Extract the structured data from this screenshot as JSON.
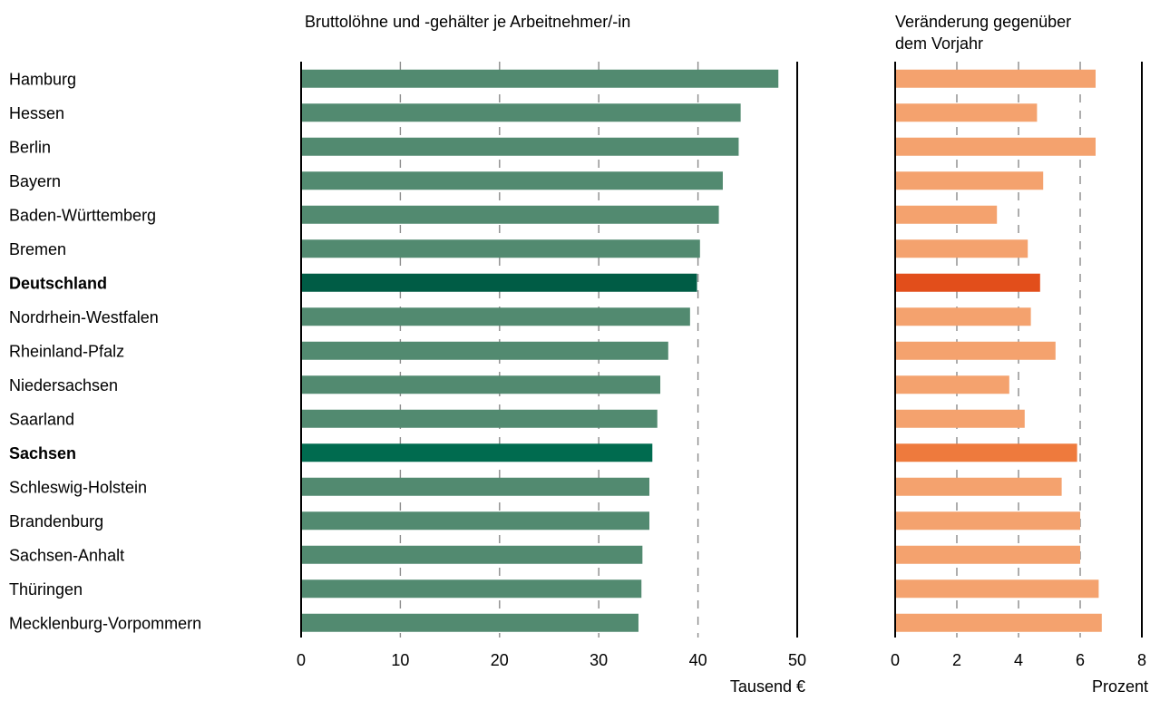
{
  "chart_data": [
    {
      "type": "bar",
      "orientation": "horizontal",
      "title": "Bruttolöhne und -gehälter je Arbeitnehmer/-in",
      "unit_label": "Tausend €",
      "xlim": [
        0,
        50
      ],
      "ticks": [
        0,
        10,
        20,
        30,
        40,
        50
      ],
      "grid": true,
      "colors": {
        "default": "#528a70",
        "Deutschland": "#005c45",
        "Sachsen": "#006b4f"
      },
      "categories": [
        "Hamburg",
        "Hessen",
        "Berlin",
        "Bayern",
        "Baden-Württemberg",
        "Bremen",
        "Deutschland",
        "Nordrhein-Westfalen",
        "Rheinland-Pfalz",
        "Niedersachsen",
        "Saarland",
        "Sachsen",
        "Schleswig-Holstein",
        "Brandenburg",
        "Sachsen-Anhalt",
        "Thüringen",
        "Mecklenburg-Vorpommern"
      ],
      "bold_categories": [
        "Deutschland",
        "Sachsen"
      ],
      "values": [
        48.1,
        44.3,
        44.1,
        42.5,
        42.1,
        40.2,
        39.9,
        39.2,
        37.0,
        36.2,
        35.9,
        35.4,
        35.1,
        35.1,
        34.4,
        34.3,
        34.0
      ]
    },
    {
      "type": "bar",
      "orientation": "horizontal",
      "title": "Veränderung gegenüber dem Vorjahr",
      "unit_label": "Prozent",
      "xlim": [
        0,
        8
      ],
      "ticks": [
        0,
        2,
        4,
        6,
        8
      ],
      "grid": true,
      "colors": {
        "default": "#f4a26e",
        "Deutschland": "#e24e1b",
        "Sachsen": "#ee7a3d"
      },
      "categories": [
        "Hamburg",
        "Hessen",
        "Berlin",
        "Bayern",
        "Baden-Württemberg",
        "Bremen",
        "Deutschland",
        "Nordrhein-Westfalen",
        "Rheinland-Pfalz",
        "Niedersachsen",
        "Saarland",
        "Sachsen",
        "Schleswig-Holstein",
        "Brandenburg",
        "Sachsen-Anhalt",
        "Thüringen",
        "Mecklenburg-Vorpommern"
      ],
      "values": [
        6.5,
        4.6,
        6.5,
        4.8,
        3.3,
        4.3,
        4.7,
        4.4,
        5.2,
        3.7,
        4.2,
        5.9,
        5.4,
        6.0,
        6.0,
        6.6,
        6.7
      ]
    }
  ]
}
